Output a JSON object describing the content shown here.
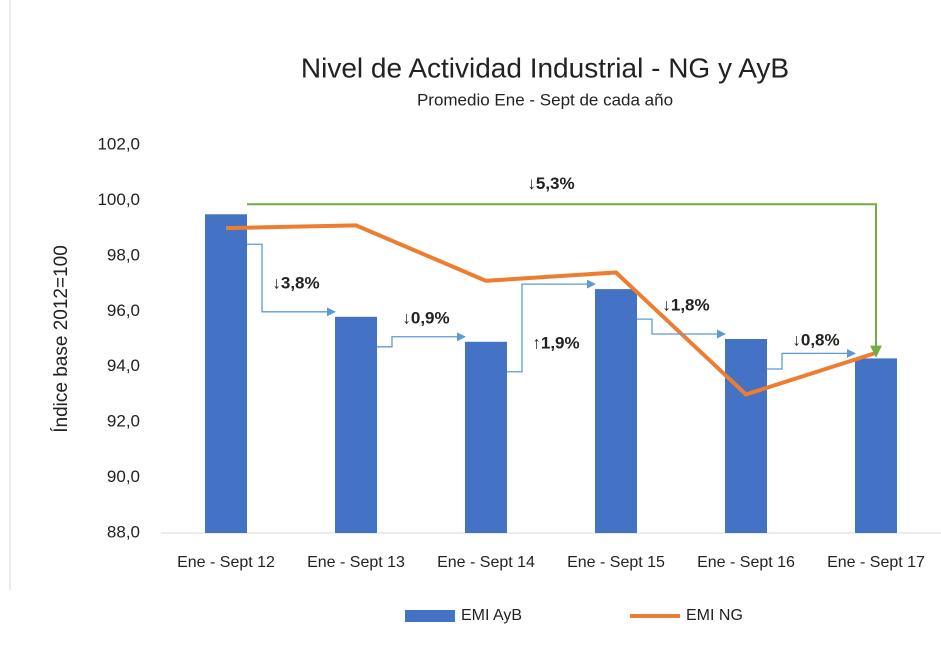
{
  "chart_data": {
    "type": "bar-line",
    "title": "Nivel de Actividad Industrial - NG y AyB",
    "subtitle": "Promedio Ene - Sept de cada año",
    "y_label": "Índice base 2012=100",
    "categories": [
      "Ene - Sept 12",
      "Ene - Sept 13",
      "Ene - Sept 14",
      "Ene - Sept 15",
      "Ene - Sept 16",
      "Ene - Sept 17"
    ],
    "series": [
      {
        "name": "EMI AyB",
        "type": "bar",
        "color": "#4472c4",
        "values": [
          99.5,
          95.8,
          94.9,
          96.8,
          95.0,
          94.3
        ]
      },
      {
        "name": "EMI NG",
        "type": "line",
        "color": "#ed7d31",
        "values": [
          99.0,
          99.1,
          97.1,
          97.4,
          93.0,
          94.5
        ]
      }
    ],
    "annotations": [
      "↓5,3%",
      "↓3,8%",
      "↓0,9%",
      "↑1,9%",
      "↓1,8%",
      "↓0,8%"
    ],
    "ylim": [
      88,
      102
    ],
    "yticks": [
      {
        "value": 88,
        "label": "88,0"
      },
      {
        "value": 90,
        "label": "90,0"
      },
      {
        "value": 92,
        "label": "92,0"
      },
      {
        "value": 94,
        "label": "94,0"
      },
      {
        "value": 96,
        "label": "96,0"
      },
      {
        "value": 98,
        "label": "98,0"
      },
      {
        "value": 100,
        "label": "100,0"
      },
      {
        "value": 102,
        "label": "102,0"
      }
    ],
    "grid": false
  }
}
